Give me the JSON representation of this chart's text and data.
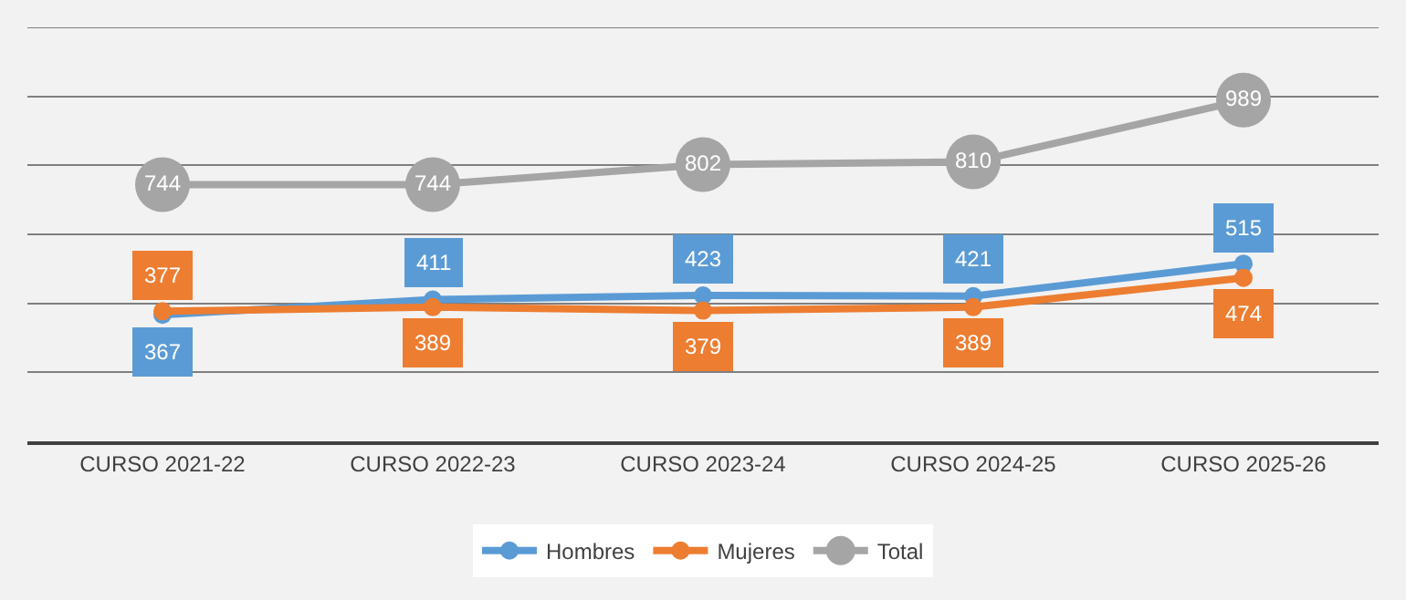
{
  "chart_data": {
    "type": "line",
    "categories": [
      "CURSO 2021-22",
      "CURSO 2022-23",
      "CURSO 2023-24",
      "CURSO 2024-25",
      "CURSO 2025-26"
    ],
    "series": [
      {
        "name": "Hombres",
        "color": "#5b9bd5",
        "values": [
          367,
          411,
          423,
          421,
          515
        ]
      },
      {
        "name": "Mujeres",
        "color": "#ed7d31",
        "values": [
          377,
          389,
          379,
          389,
          474
        ]
      },
      {
        "name": "Total",
        "color": "#a5a5a5",
        "values": [
          744,
          744,
          802,
          810,
          989
        ]
      }
    ],
    "ylim": [
      0,
      1200
    ],
    "yticks": [
      {
        "value": 0,
        "label": null
      },
      {
        "value": 200,
        "label": null
      },
      {
        "value": 400,
        "label": null
      },
      {
        "value": 600,
        "label": null
      },
      {
        "value": 800,
        "label": null
      },
      {
        "value": 1000,
        "label": null
      },
      {
        "value": 1200,
        "label": null
      }
    ],
    "tick_labels": "x",
    "grid": "y",
    "legend": "bottom",
    "data_labels": true,
    "marker": "circle",
    "line_style": "solid"
  }
}
